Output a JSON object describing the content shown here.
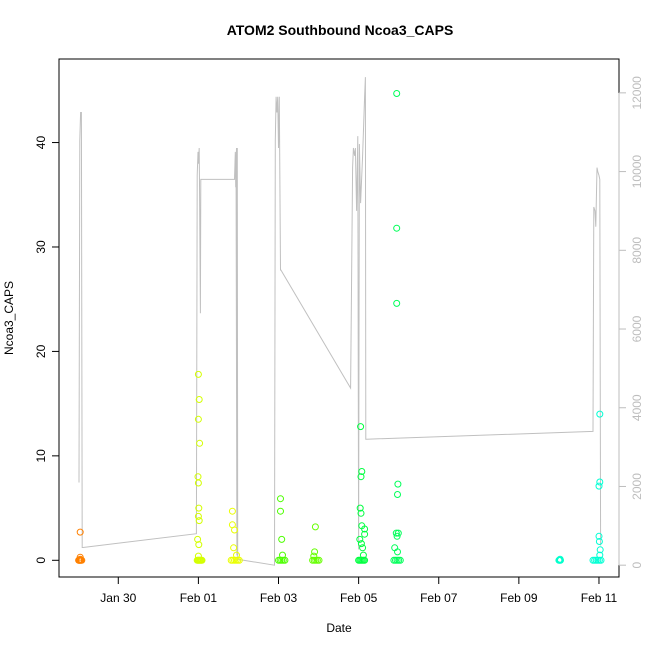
{
  "chart_data": {
    "type": "scatter",
    "title": "ATOM2 Southbound Ncoa3_CAPS",
    "xlabel": "Date",
    "ylabel": "Ncoa3_CAPS",
    "x_tick_labels": [
      "Jan 30",
      "Feb 01",
      "Feb 03",
      "Feb 05",
      "Feb 07",
      "Feb 09",
      "Feb 11"
    ],
    "x_tick_days": [
      0,
      2,
      4,
      6,
      8,
      10,
      12
    ],
    "x_origin_date": "Jan 30",
    "xlim_days": [
      -1.48,
      12.5
    ],
    "ylim": [
      -1.6,
      48.0
    ],
    "y_ticks": [
      0,
      10,
      20,
      30,
      40
    ],
    "y2lim": [
      -300,
      12860
    ],
    "y2_ticks": [
      0,
      2000,
      4000,
      6000,
      8000,
      10000,
      12000
    ],
    "grid": false,
    "point_style": "open circle",
    "point_series": [
      {
        "color": "#ff8000",
        "points": [
          [
            -0.95,
            2.7
          ],
          [
            -0.95,
            0.3
          ],
          [
            -0.95,
            0.1
          ],
          [
            -0.98,
            0
          ],
          [
            -0.96,
            0
          ],
          [
            -0.94,
            0
          ],
          [
            -0.93,
            0
          ],
          [
            -0.91,
            0
          ],
          [
            -0.99,
            0
          ],
          [
            -0.97,
            0
          ]
        ]
      },
      {
        "color": "#d4ff00",
        "points": [
          [
            2.0,
            17.8
          ],
          [
            2.02,
            15.4
          ],
          [
            2.0,
            13.5
          ],
          [
            2.03,
            11.2
          ],
          [
            1.99,
            8.0
          ],
          [
            2.0,
            7.4
          ],
          [
            2.01,
            5.0
          ],
          [
            2.0,
            4.2
          ],
          [
            2.02,
            3.8
          ],
          [
            1.98,
            2.0
          ],
          [
            2.01,
            1.5
          ],
          [
            2.0,
            0.4
          ],
          [
            1.97,
            0
          ],
          [
            1.99,
            0
          ],
          [
            2.01,
            0
          ],
          [
            2.03,
            0
          ],
          [
            2.05,
            0
          ],
          [
            2.07,
            0
          ],
          [
            2.09,
            0
          ]
        ]
      },
      {
        "color": "#eaff00",
        "points": [
          [
            2.85,
            4.7
          ],
          [
            2.85,
            3.4
          ],
          [
            2.9,
            2.9
          ],
          [
            2.88,
            1.2
          ],
          [
            2.95,
            0.5
          ],
          [
            2.82,
            0
          ],
          [
            2.86,
            0
          ],
          [
            2.9,
            0
          ],
          [
            2.94,
            0
          ],
          [
            2.98,
            0
          ],
          [
            3.02,
            0
          ]
        ]
      },
      {
        "color": "#4dff00",
        "points": [
          [
            4.05,
            5.9
          ],
          [
            4.05,
            4.7
          ],
          [
            4.08,
            2.0
          ],
          [
            4.1,
            0.5
          ],
          [
            4.0,
            0
          ],
          [
            4.04,
            0
          ],
          [
            4.08,
            0
          ],
          [
            4.12,
            0
          ],
          [
            4.16,
            0
          ]
        ]
      },
      {
        "color": "#66ff00",
        "points": [
          [
            4.92,
            3.2
          ],
          [
            4.9,
            0.8
          ],
          [
            4.88,
            0.4
          ],
          [
            4.85,
            0
          ],
          [
            4.89,
            0
          ],
          [
            4.93,
            0
          ],
          [
            4.97,
            0
          ],
          [
            5.01,
            0
          ]
        ]
      },
      {
        "color": "#00ff40",
        "points": [
          [
            6.05,
            12.8
          ],
          [
            6.08,
            8.5
          ],
          [
            6.06,
            8.0
          ],
          [
            6.04,
            5.0
          ],
          [
            6.06,
            4.5
          ],
          [
            6.08,
            3.3
          ],
          [
            6.15,
            3.0
          ],
          [
            6.15,
            2.5
          ],
          [
            6.03,
            2.0
          ],
          [
            6.07,
            1.6
          ],
          [
            6.1,
            1.2
          ],
          [
            6.12,
            0.5
          ],
          [
            6.0,
            0
          ],
          [
            6.03,
            0
          ],
          [
            6.06,
            0
          ],
          [
            6.09,
            0
          ],
          [
            6.12,
            0
          ],
          [
            6.15,
            0
          ]
        ]
      },
      {
        "color": "#00ff59",
        "points": [
          [
            6.95,
            44.7
          ],
          [
            6.95,
            31.8
          ],
          [
            6.95,
            24.6
          ],
          [
            6.98,
            7.3
          ],
          [
            6.97,
            6.3
          ],
          [
            6.94,
            2.6
          ],
          [
            6.96,
            2.3
          ],
          [
            6.99,
            2.6
          ],
          [
            6.9,
            1.2
          ],
          [
            6.97,
            0.8
          ],
          [
            6.88,
            0
          ],
          [
            6.92,
            0
          ],
          [
            6.96,
            0
          ],
          [
            7.0,
            0
          ],
          [
            7.04,
            0
          ]
        ]
      },
      {
        "color": "#00ffcc",
        "points": [
          [
            11.0,
            0
          ],
          [
            11.02,
            0
          ],
          [
            11.04,
            0
          ],
          [
            11.03,
            0.1
          ]
        ]
      },
      {
        "color": "#00ffd4",
        "points": [
          [
            12.02,
            14.0
          ],
          [
            12.02,
            7.5
          ],
          [
            12.0,
            7.1
          ],
          [
            12.0,
            2.3
          ],
          [
            12.01,
            1.8
          ],
          [
            12.03,
            1.0
          ],
          [
            12.02,
            0.5
          ],
          [
            11.85,
            0
          ],
          [
            11.89,
            0
          ],
          [
            11.93,
            0
          ],
          [
            11.97,
            0
          ],
          [
            12.01,
            0
          ],
          [
            12.05,
            0
          ]
        ]
      }
    ],
    "line_series": {
      "name": "",
      "color": "#c0c0c0",
      "axis": "right",
      "points": [
        [
          -0.98,
          2100
        ],
        [
          -0.96,
          10800
        ],
        [
          -0.94,
          11500
        ],
        [
          -0.92,
          11500
        ],
        [
          -0.9,
          450
        ],
        [
          -0.88,
          450
        ],
        [
          1.95,
          800
        ],
        [
          1.97,
          9900
        ],
        [
          1.99,
          10500
        ],
        [
          2.0,
          10200
        ],
        [
          2.02,
          10600
        ],
        [
          2.03,
          9400
        ],
        [
          2.05,
          6400
        ],
        [
          2.06,
          9800
        ],
        [
          2.07,
          9800
        ],
        [
          2.9,
          9800
        ],
        [
          2.92,
          10500
        ],
        [
          2.93,
          9600
        ],
        [
          2.95,
          10600
        ],
        [
          2.96,
          250
        ],
        [
          2.94,
          9600
        ],
        [
          2.96,
          10200
        ],
        [
          2.97,
          10600
        ],
        [
          2.98,
          150
        ],
        [
          3.9,
          0
        ],
        [
          3.92,
          10800
        ],
        [
          3.94,
          11900
        ],
        [
          3.96,
          11500
        ],
        [
          3.98,
          11900
        ],
        [
          4.0,
          10600
        ],
        [
          4.02,
          11900
        ],
        [
          4.05,
          7500
        ],
        [
          4.06,
          7500
        ],
        [
          5.8,
          4500
        ],
        [
          5.85,
          10100
        ],
        [
          5.87,
          10600
        ],
        [
          5.9,
          10400
        ],
        [
          5.92,
          10600
        ],
        [
          5.95,
          9000
        ],
        [
          5.98,
          10900
        ],
        [
          6.0,
          400
        ],
        [
          6.02,
          10700
        ],
        [
          6.05,
          9200
        ],
        [
          6.1,
          10400
        ],
        [
          6.15,
          11900
        ],
        [
          6.17,
          12400
        ],
        [
          6.18,
          3200
        ],
        [
          6.2,
          3200
        ],
        [
          11.85,
          3400
        ],
        [
          11.87,
          9100
        ],
        [
          11.9,
          9000
        ],
        [
          11.92,
          8600
        ],
        [
          11.95,
          10100
        ],
        [
          11.97,
          10000
        ],
        [
          12.0,
          9900
        ],
        [
          12.02,
          9800
        ],
        [
          12.04,
          500
        ]
      ]
    }
  }
}
